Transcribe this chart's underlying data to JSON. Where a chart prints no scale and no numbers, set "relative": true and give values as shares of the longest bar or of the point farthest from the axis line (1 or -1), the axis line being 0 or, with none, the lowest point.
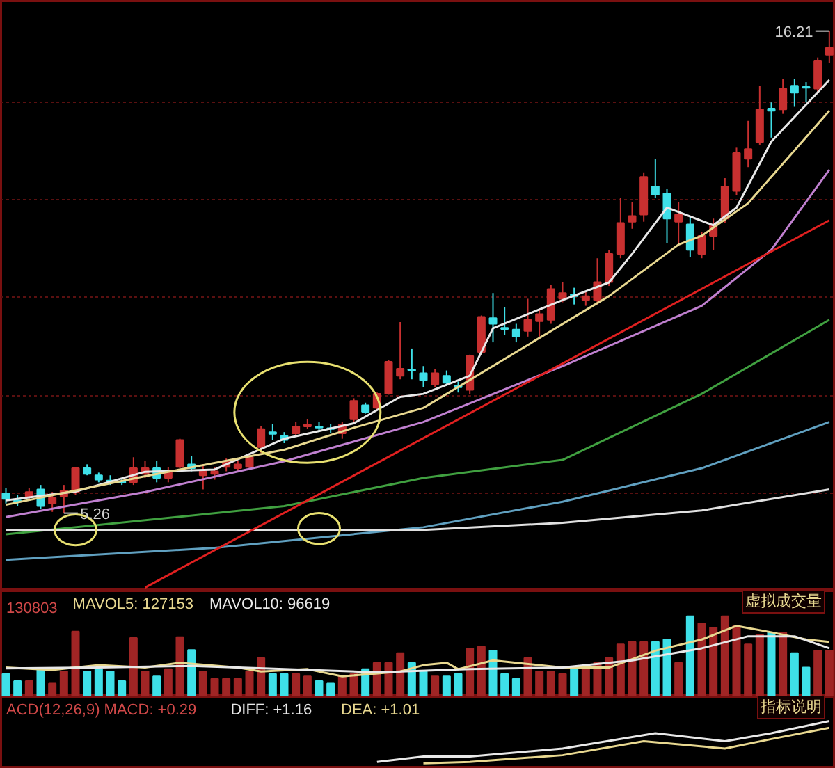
{
  "chart_data": [
    {
      "type": "candlestick",
      "categories": [
        null,
        null,
        null,
        null,
        null,
        null,
        null,
        null,
        null,
        null,
        null,
        null,
        null,
        null,
        null,
        null,
        null,
        null,
        null,
        null,
        null,
        null,
        null,
        null,
        null,
        null,
        null,
        null,
        null,
        null,
        null,
        null,
        null,
        null,
        null,
        null,
        null,
        null,
        null,
        null,
        null,
        null,
        null,
        null,
        null,
        null,
        null,
        null,
        null,
        null,
        null,
        null,
        null,
        null,
        null,
        null,
        null,
        null,
        null,
        null,
        null,
        null,
        null,
        null,
        null,
        null,
        null,
        null,
        null,
        null,
        null,
        null
      ],
      "ohlc": [
        [
          5.71,
          5.83,
          5.48,
          5.58
        ],
        [
          5.55,
          5.67,
          5.42,
          5.52
        ],
        [
          5.64,
          5.83,
          5.55,
          5.74
        ],
        [
          5.8,
          5.9,
          5.36,
          5.42
        ],
        [
          5.48,
          5.74,
          5.29,
          5.61
        ],
        [
          5.64,
          5.9,
          5.26,
          5.77
        ],
        [
          5.74,
          6.31,
          5.67,
          6.28
        ],
        [
          6.28,
          6.37,
          6.12,
          6.15
        ],
        [
          6.12,
          6.18,
          5.96,
          6.02
        ],
        [
          6.0,
          6.12,
          5.9,
          5.98
        ],
        [
          5.98,
          6.06,
          5.9,
          5.96
        ],
        [
          5.96,
          6.53,
          5.9,
          6.28
        ],
        [
          6.15,
          6.44,
          6.06,
          6.28
        ],
        [
          6.28,
          6.44,
          5.96,
          6.06
        ],
        [
          6.06,
          6.31,
          5.96,
          6.21
        ],
        [
          6.31,
          6.95,
          6.28,
          6.92
        ],
        [
          6.37,
          6.56,
          6.21,
          6.28
        ],
        [
          6.12,
          6.37,
          5.8,
          6.21
        ],
        [
          6.15,
          6.31,
          6.02,
          6.21
        ],
        [
          6.31,
          6.5,
          6.21,
          6.44
        ],
        [
          6.28,
          6.44,
          6.21,
          6.37
        ],
        [
          6.31,
          6.6,
          6.25,
          6.53
        ],
        [
          6.76,
          7.24,
          6.63,
          7.17
        ],
        [
          7.1,
          7.29,
          6.92,
          7.06
        ],
        [
          7.01,
          7.1,
          6.85,
          6.92
        ],
        [
          7.07,
          7.33,
          7.01,
          7.23
        ],
        [
          7.23,
          7.4,
          7.17,
          7.27
        ],
        [
          7.22,
          7.33,
          7.1,
          7.2
        ],
        [
          7.19,
          7.29,
          7.07,
          7.17
        ],
        [
          7.07,
          7.33,
          6.95,
          7.27
        ],
        [
          7.39,
          7.87,
          7.33,
          7.81
        ],
        [
          7.71,
          7.77,
          7.52,
          7.56
        ],
        [
          7.65,
          8.0,
          7.6,
          7.97
        ],
        [
          7.97,
          8.73,
          7.95,
          8.7
        ],
        [
          8.38,
          9.6,
          8.3,
          8.54
        ],
        [
          8.52,
          9.0,
          8.3,
          8.5
        ],
        [
          8.44,
          8.6,
          8.12,
          8.28
        ],
        [
          8.19,
          8.54,
          8.12,
          8.44
        ],
        [
          8.38,
          8.5,
          8.15,
          8.22
        ],
        [
          8.15,
          8.25,
          8.0,
          8.12
        ],
        [
          8.06,
          8.86,
          7.97,
          8.83
        ],
        [
          8.92,
          9.75,
          8.86,
          9.72
        ],
        [
          9.69,
          10.26,
          9.14,
          9.56
        ],
        [
          9.47,
          9.94,
          9.31,
          9.44
        ],
        [
          9.43,
          9.56,
          9.14,
          9.27
        ],
        [
          9.4,
          10.13,
          9.27,
          9.65
        ],
        [
          9.62,
          9.88,
          9.27,
          9.78
        ],
        [
          9.65,
          10.45,
          9.56,
          10.35
        ],
        [
          10.13,
          10.51,
          10.05,
          10.26
        ],
        [
          10.23,
          10.38,
          10.0,
          10.19
        ],
        [
          10.1,
          10.29,
          9.97,
          10.19
        ],
        [
          10.1,
          11.05,
          10.0,
          10.51
        ],
        [
          10.51,
          11.24,
          10.42,
          11.15
        ],
        [
          11.15,
          12.42,
          11.05,
          11.85
        ],
        [
          11.88,
          12.33,
          11.72,
          12.01
        ],
        [
          12.04,
          13.0,
          11.88,
          12.9
        ],
        [
          12.68,
          13.31,
          12.42,
          12.49
        ],
        [
          12.52,
          12.62,
          11.4,
          11.95
        ],
        [
          11.88,
          12.33,
          11.4,
          12.04
        ],
        [
          11.82,
          12.0,
          11.08,
          11.24
        ],
        [
          11.15,
          11.65,
          11.05,
          11.56
        ],
        [
          11.56,
          11.95,
          11.24,
          11.79
        ],
        [
          11.95,
          12.87,
          11.85,
          12.68
        ],
        [
          12.58,
          13.56,
          12.49,
          13.44
        ],
        [
          13.31,
          14.17,
          13.12,
          13.53
        ],
        [
          13.69,
          14.97,
          13.63,
          14.43
        ],
        [
          14.45,
          14.59,
          13.79,
          14.4
        ],
        [
          14.43,
          15.13,
          14.33,
          14.9
        ],
        [
          14.97,
          15.13,
          14.49,
          14.81
        ],
        [
          14.94,
          15.05,
          14.59,
          14.92
        ],
        [
          14.9,
          15.61,
          14.81,
          15.54
        ],
        [
          15.67,
          16.21,
          15.49,
          15.83
        ]
      ],
      "colors": [
        "#3ee0e8",
        "#3ee0e8",
        "#c83030",
        "#3ee0e8",
        "#c83030",
        "#c83030",
        "#c83030",
        "#3ee0e8",
        "#3ee0e8",
        "#3ee0e8",
        "#3ee0e8",
        "#c83030",
        "#c83030",
        "#3ee0e8",
        "#c83030",
        "#c83030",
        "#3ee0e8",
        "#c83030",
        "#c83030",
        "#c83030",
        "#c83030",
        "#c83030",
        "#c83030",
        "#3ee0e8",
        "#3ee0e8",
        "#c83030",
        "#c83030",
        "#3ee0e8",
        "#3ee0e8",
        "#c83030",
        "#c83030",
        "#3ee0e8",
        "#c83030",
        "#c83030",
        "#c83030",
        "#3ee0e8",
        "#3ee0e8",
        "#c83030",
        "#3ee0e8",
        "#3ee0e8",
        "#c83030",
        "#c83030",
        "#3ee0e8",
        "#3ee0e8",
        "#3ee0e8",
        "#c83030",
        "#c83030",
        "#c83030",
        "#c83030",
        "#3ee0e8",
        "#c83030",
        "#c83030",
        "#c83030",
        "#c83030",
        "#c83030",
        "#c83030",
        "#3ee0e8",
        "#3ee0e8",
        "#c83030",
        "#3ee0e8",
        "#c83030",
        "#c83030",
        "#c83030",
        "#c83030",
        "#c83030",
        "#c83030",
        "#3ee0e8",
        "#c83030",
        "#3ee0e8",
        "#3ee0e8",
        "#c83030",
        "#c83030"
      ],
      "series": [
        {
          "type": "line",
          "color": "#e8e8e8",
          "values": [
            5.55,
            null,
            null,
            null,
            null,
            null,
            5.75,
            null,
            null,
            null,
            null,
            null,
            6.2,
            null,
            null,
            null,
            null,
            null,
            6.25,
            null,
            null,
            null,
            null,
            null,
            6.95,
            null,
            null,
            null,
            null,
            null,
            7.3,
            null,
            null,
            null,
            7.9,
            null,
            7.97,
            null,
            null,
            null,
            8.38,
            null,
            9.46,
            null,
            null,
            null,
            null,
            null,
            10.1,
            null,
            null,
            null,
            10.5,
            null,
            11.15,
            null,
            null,
            12.2,
            null,
            null,
            null,
            11.8,
            null,
            12.2,
            null,
            null,
            13.7,
            null,
            null,
            null,
            null,
            15.1
          ]
        },
        {
          "type": "line",
          "color": "#e8d890",
          "values": [
            5.45,
            null,
            null,
            null,
            null,
            null,
            null,
            null,
            null,
            null,
            null,
            null,
            6.1,
            null,
            null,
            null,
            null,
            null,
            null,
            null,
            null,
            null,
            null,
            null,
            6.7,
            null,
            null,
            null,
            null,
            null,
            7.2,
            null,
            null,
            null,
            null,
            null,
            7.65,
            null,
            null,
            null,
            null,
            null,
            null,
            null,
            8.92,
            null,
            null,
            null,
            null,
            null,
            null,
            null,
            10.19,
            null,
            null,
            null,
            null,
            null,
            11.36,
            null,
            11.56,
            null,
            null,
            null,
            12.3,
            null,
            null,
            null,
            null,
            null,
            null,
            14.4
          ]
        },
        {
          "type": "line",
          "color": "#c080d0",
          "values": [
            5.17,
            null,
            null,
            null,
            null,
            null,
            null,
            null,
            null,
            null,
            null,
            null,
            5.74,
            null,
            null,
            null,
            null,
            null,
            null,
            null,
            null,
            null,
            null,
            null,
            6.44,
            null,
            null,
            null,
            null,
            null,
            null,
            null,
            null,
            null,
            null,
            null,
            7.33,
            null,
            null,
            null,
            null,
            null,
            null,
            null,
            null,
            null,
            null,
            null,
            8.6,
            null,
            null,
            null,
            null,
            null,
            null,
            null,
            null,
            null,
            null,
            null,
            9.97,
            null,
            null,
            null,
            null,
            null,
            11.24,
            null,
            null,
            null,
            null,
            13.06
          ]
        },
        {
          "type": "line",
          "color": "#40a040",
          "values": [
            4.78,
            null,
            null,
            null,
            null,
            null,
            null,
            null,
            null,
            null,
            null,
            null,
            null,
            null,
            null,
            null,
            null,
            null,
            null,
            null,
            null,
            null,
            null,
            null,
            5.42,
            null,
            null,
            null,
            null,
            null,
            null,
            null,
            null,
            null,
            null,
            null,
            6.06,
            null,
            null,
            null,
            null,
            null,
            null,
            null,
            null,
            null,
            null,
            null,
            6.47,
            null,
            null,
            null,
            null,
            null,
            null,
            null,
            null,
            null,
            null,
            null,
            7.97,
            null,
            null,
            null,
            null,
            null,
            null,
            null,
            null,
            null,
            null,
            9.65
          ]
        },
        {
          "type": "line",
          "color": "#60a0c0",
          "values": [
            4.2,
            null,
            null,
            null,
            null,
            null,
            null,
            null,
            null,
            null,
            null,
            null,
            null,
            null,
            null,
            null,
            null,
            null,
            4.47,
            null,
            null,
            null,
            null,
            null,
            null,
            null,
            null,
            null,
            null,
            null,
            null,
            null,
            null,
            null,
            null,
            null,
            4.94,
            null,
            null,
            null,
            null,
            null,
            null,
            null,
            null,
            null,
            null,
            null,
            5.52,
            null,
            null,
            null,
            null,
            null,
            null,
            null,
            null,
            null,
            null,
            null,
            6.28,
            null,
            null,
            null,
            null,
            null,
            null,
            null,
            null,
            null,
            null,
            7.33
          ]
        },
        {
          "type": "line",
          "color": "#e0e0e0",
          "values": [
            4.88,
            null,
            null,
            null,
            null,
            null,
            null,
            null,
            null,
            null,
            null,
            null,
            null,
            null,
            null,
            null,
            null,
            null,
            null,
            null,
            null,
            null,
            null,
            null,
            null,
            null,
            null,
            null,
            null,
            null,
            null,
            null,
            null,
            null,
            null,
            null,
            4.88,
            null,
            null,
            null,
            null,
            null,
            null,
            null,
            null,
            null,
            null,
            null,
            5.04,
            null,
            null,
            null,
            null,
            null,
            null,
            null,
            null,
            null,
            null,
            null,
            5.32,
            null,
            null,
            null,
            null,
            null,
            null,
            null,
            null,
            null,
            null,
            5.8
          ]
        },
        {
          "type": "line",
          "color": "#e02020",
          "values": [
            null,
            null,
            null,
            null,
            null,
            null,
            null,
            null,
            null,
            null,
            null,
            null,
            3.57,
            null,
            null,
            null,
            null,
            null,
            null,
            null,
            null,
            null,
            null,
            null,
            null,
            null,
            null,
            null,
            null,
            null,
            null,
            null,
            null,
            null,
            null,
            null,
            null,
            null,
            null,
            null,
            null,
            null,
            null,
            null,
            null,
            null,
            null,
            null,
            null,
            null,
            null,
            null,
            null,
            null,
            null,
            null,
            null,
            null,
            null,
            null,
            null,
            null,
            null,
            null,
            null,
            null,
            null,
            null,
            null,
            null,
            null,
            11.91
          ]
        }
      ],
      "ylim": [
        3.5,
        16.9
      ],
      "yticks": [
        {
          "value": 5.7,
          "label": null
        },
        {
          "value": 7.93,
          "label": null
        },
        {
          "value": 10.16,
          "label": null
        },
        {
          "value": 12.37,
          "label": null
        },
        {
          "value": 14.59,
          "label": null
        }
      ],
      "grid": "y",
      "tick_labels": false,
      "legend": false,
      "annotations": [
        "16.21",
        "5.26"
      ]
    },
    {
      "type": "bar",
      "title": "130803",
      "relative": true,
      "categories": [
        null,
        null,
        null,
        null,
        null,
        null,
        null,
        null,
        null,
        null,
        null,
        null,
        null,
        null,
        null,
        null,
        null,
        null,
        null,
        null,
        null,
        null,
        null,
        null,
        null,
        null,
        null,
        null,
        null,
        null,
        null,
        null,
        null,
        null,
        null,
        null,
        null,
        null,
        null,
        null,
        null,
        null,
        null,
        null,
        null,
        null,
        null,
        null,
        null,
        null,
        null,
        null,
        null,
        null,
        null,
        null,
        null,
        null,
        null,
        null,
        null,
        null,
        null,
        null,
        null,
        null,
        null,
        null,
        null,
        null,
        null,
        null
      ],
      "values": [
        0.28,
        0.19,
        0.19,
        0.34,
        0.16,
        0.31,
        0.81,
        0.31,
        0.34,
        0.31,
        0.19,
        0.73,
        0.31,
        0.25,
        0.34,
        0.74,
        0.58,
        0.31,
        0.22,
        0.22,
        0.22,
        0.31,
        0.48,
        0.28,
        0.28,
        0.28,
        0.25,
        0.19,
        0.16,
        0.25,
        0.28,
        0.34,
        0.42,
        0.42,
        0.54,
        0.42,
        0.31,
        0.25,
        0.25,
        0.28,
        0.6,
        0.62,
        0.57,
        0.28,
        0.22,
        0.48,
        0.31,
        0.31,
        0.28,
        0.34,
        0.34,
        0.42,
        0.48,
        0.65,
        0.68,
        0.68,
        0.68,
        0.71,
        0.42,
        1.0,
        0.91,
        0.86,
        1.0,
        0.88,
        0.65,
        0.77,
        0.8,
        0.8,
        0.54,
        0.36,
        0.57,
        0.57
      ],
      "colors": [
        "#3ee0e8",
        "#3ee0e8",
        "#a02525",
        "#3ee0e8",
        "#a02525",
        "#a02525",
        "#a02525",
        "#3ee0e8",
        "#3ee0e8",
        "#3ee0e8",
        "#3ee0e8",
        "#a02525",
        "#a02525",
        "#3ee0e8",
        "#a02525",
        "#a02525",
        "#3ee0e8",
        "#a02525",
        "#a02525",
        "#a02525",
        "#a02525",
        "#a02525",
        "#a02525",
        "#3ee0e8",
        "#3ee0e8",
        "#a02525",
        "#a02525",
        "#3ee0e8",
        "#3ee0e8",
        "#a02525",
        "#a02525",
        "#3ee0e8",
        "#a02525",
        "#a02525",
        "#a02525",
        "#3ee0e8",
        "#3ee0e8",
        "#a02525",
        "#3ee0e8",
        "#3ee0e8",
        "#a02525",
        "#a02525",
        "#3ee0e8",
        "#3ee0e8",
        "#3ee0e8",
        "#a02525",
        "#a02525",
        "#a02525",
        "#a02525",
        "#3ee0e8",
        "#a02525",
        "#a02525",
        "#a02525",
        "#a02525",
        "#a02525",
        "#a02525",
        "#3ee0e8",
        "#3ee0e8",
        "#a02525",
        "#3ee0e8",
        "#a02525",
        "#a02525",
        "#a02525",
        "#a02525",
        "#a02525",
        "#a02525",
        "#3ee0e8",
        "#a02525",
        "#3ee0e8",
        "#3ee0e8",
        "#a02525",
        "#a02525"
      ],
      "series": [
        {
          "type": "line",
          "name": "MAVOL5: 127153",
          "color": "#e8d890",
          "values": [
            0.36,
            null,
            null,
            null,
            0.33,
            null,
            null,
            null,
            0.39,
            null,
            null,
            null,
            0.36,
            null,
            null,
            0.42,
            null,
            null,
            null,
            null,
            0.36,
            null,
            0.31,
            null,
            null,
            null,
            0.34,
            null,
            null,
            0.25,
            null,
            null,
            null,
            null,
            0.31,
            null,
            0.39,
            null,
            0.42,
            0.34,
            null,
            null,
            0.45,
            null,
            null,
            null,
            null,
            null,
            0.36,
            null,
            null,
            null,
            0.36,
            null,
            null,
            null,
            0.57,
            null,
            null,
            null,
            0.71,
            null,
            null,
            0.88,
            null,
            null,
            0.8,
            null,
            null,
            0.71,
            null,
            0.68
          ]
        },
        {
          "type": "line",
          "name": "MAVOL10: 96619",
          "color": "#e8e8e8",
          "values": [
            0.35,
            null,
            null,
            null,
            null,
            null,
            null,
            null,
            0.36,
            null,
            null,
            null,
            null,
            null,
            null,
            null,
            0.38,
            null,
            null,
            null,
            null,
            null,
            null,
            null,
            0.34,
            null,
            null,
            null,
            null,
            null,
            null,
            null,
            0.3,
            null,
            null,
            null,
            null,
            null,
            null,
            null,
            0.34,
            null,
            null,
            null,
            null,
            null,
            null,
            null,
            0.36,
            null,
            null,
            null,
            null,
            null,
            0.45,
            null,
            null,
            null,
            null,
            null,
            0.6,
            null,
            null,
            null,
            0.75,
            null,
            null,
            null,
            0.75,
            null,
            null,
            0.6
          ]
        }
      ],
      "legend": "top left",
      "tick_labels": false,
      "annotations": [
        "虚拟成交量"
      ]
    },
    {
      "type": "line",
      "title": "ACD(12,26,9) MACD: +0.29",
      "relative": true,
      "categories": [
        null,
        null,
        null,
        null,
        null,
        null,
        null,
        null,
        null,
        null,
        null,
        null,
        null,
        null,
        null,
        null,
        null,
        null,
        null,
        null,
        null,
        null,
        null,
        null,
        null,
        null,
        null,
        null,
        null,
        null,
        null,
        null,
        null,
        null,
        null,
        null,
        null,
        null,
        null,
        null,
        null,
        null,
        null,
        null,
        null,
        null,
        null,
        null,
        null,
        null,
        null,
        null,
        null,
        null,
        null,
        null,
        null,
        null,
        null,
        null,
        null,
        null,
        null,
        null,
        null,
        null,
        null,
        null,
        null,
        null,
        null,
        null
      ],
      "series": [
        {
          "name": "DIFF: +1.16",
          "color": "#e8e8e8",
          "values": [
            null,
            null,
            null,
            null,
            null,
            null,
            null,
            null,
            null,
            null,
            null,
            null,
            null,
            null,
            null,
            null,
            null,
            null,
            null,
            null,
            null,
            null,
            null,
            null,
            null,
            null,
            null,
            null,
            null,
            null,
            null,
            null,
            0.09,
            null,
            null,
            null,
            0.21,
            null,
            null,
            null,
            0.21,
            null,
            null,
            null,
            null,
            null,
            null,
            null,
            0.39,
            null,
            null,
            null,
            null,
            null,
            null,
            null,
            0.73,
            null,
            null,
            null,
            null,
            null,
            0.55,
            null,
            null,
            null,
            0.73,
            null,
            null,
            null,
            null,
            1.0
          ]
        },
        {
          "name": "DEA: +1.01",
          "color": "#e8d890",
          "values": [
            null,
            null,
            null,
            null,
            null,
            null,
            null,
            null,
            null,
            null,
            null,
            null,
            null,
            null,
            null,
            null,
            null,
            null,
            null,
            null,
            null,
            null,
            null,
            null,
            null,
            null,
            null,
            null,
            null,
            null,
            null,
            null,
            null,
            null,
            null,
            null,
            0.06,
            null,
            null,
            null,
            0.09,
            null,
            null,
            null,
            null,
            null,
            null,
            null,
            0.24,
            null,
            null,
            null,
            null,
            null,
            null,
            0.55,
            null,
            null,
            null,
            null,
            null,
            null,
            0.39,
            null,
            null,
            null,
            0.6,
            null,
            null,
            null,
            null,
            0.85
          ]
        }
      ],
      "legend": "top left",
      "tick_labels": false,
      "annotations": [
        "指标说明"
      ]
    }
  ]
}
